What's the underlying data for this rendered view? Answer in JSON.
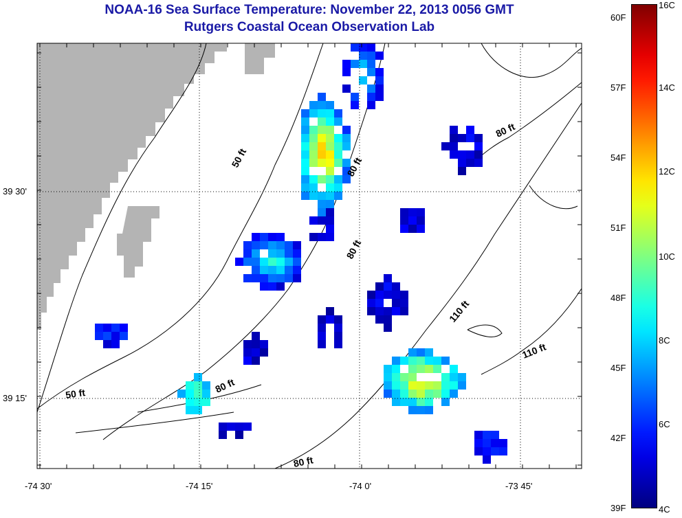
{
  "header": {
    "title": "NOAA-16 Sea Surface Temperature:  November 22, 2013 0056 GMT",
    "subtitle": "Rutgers Coastal Ocean Observation Lab"
  },
  "map": {
    "lon_ticks": [
      "-74 30'",
      "-74 15'",
      "-74 0'",
      "-73 45'"
    ],
    "lat_ticks": [
      "39 30'",
      "39 15'"
    ],
    "contour_labels": [
      "50 ft",
      "80 ft",
      "80 ft",
      "80 ft",
      "110 ft",
      "110 ft",
      "50 ft",
      "80 ft",
      "80 ft"
    ],
    "land_color": "#b4b4b4",
    "contour_color": "#000000"
  },
  "colorbar": {
    "fahrenheit_labels": [
      "60F",
      "57F",
      "54F",
      "51F",
      "48F",
      "45F",
      "42F",
      "39F"
    ],
    "celsius_labels": [
      "16C",
      "14C",
      "12C",
      "10C",
      "8C",
      "6C",
      "4C"
    ],
    "range_c": [
      4,
      16
    ],
    "colormap": "jet"
  }
}
